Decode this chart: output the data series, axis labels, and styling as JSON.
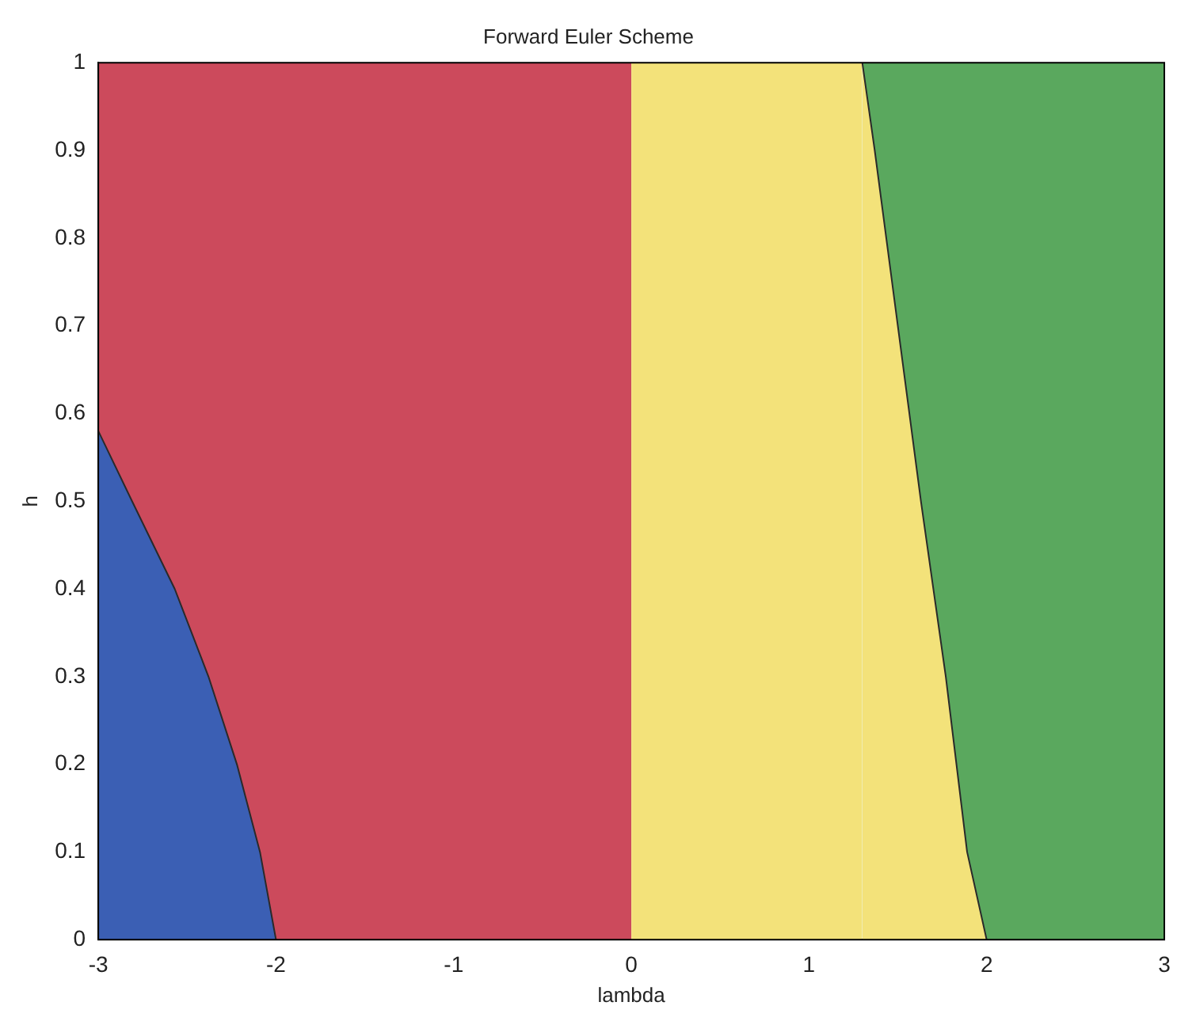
{
  "chart_data": {
    "type": "area",
    "title": "Forward Euler Scheme",
    "xlabel": "lambda",
    "ylabel": "h",
    "xlim": [
      -3,
      3
    ],
    "ylim": [
      0,
      1
    ],
    "xticks": [
      -3,
      -2,
      -1,
      0,
      1,
      2,
      3
    ],
    "yticks": [
      0,
      0.1,
      0.2,
      0.3,
      0.4,
      0.5,
      0.6,
      0.7,
      0.8,
      0.9,
      1
    ],
    "grid": false,
    "legend": false,
    "series": [
      {
        "color": "#cc4a5c",
        "x": [
          -3,
          0
        ],
        "values": [
          1,
          1
        ]
      },
      {
        "color": "#3b5fb4",
        "x": [
          -3,
          -2.81,
          -2.57,
          -2.38,
          -2.22,
          -2.09,
          -2
        ],
        "values": [
          0.58,
          0.5,
          0.4,
          0.3,
          0.2,
          0.1,
          0
        ]
      },
      {
        "color": "#5aa85e",
        "x": [
          1.3,
          3
        ],
        "values": [
          1,
          1
        ]
      },
      {
        "color": "#f3e27a",
        "x": [
          0,
          1.3,
          1.37,
          1.5,
          1.63,
          1.77,
          1.89,
          2
        ],
        "values": [
          1,
          1,
          0.9,
          0.7,
          0.5,
          0.3,
          0.1,
          0
        ]
      }
    ]
  }
}
